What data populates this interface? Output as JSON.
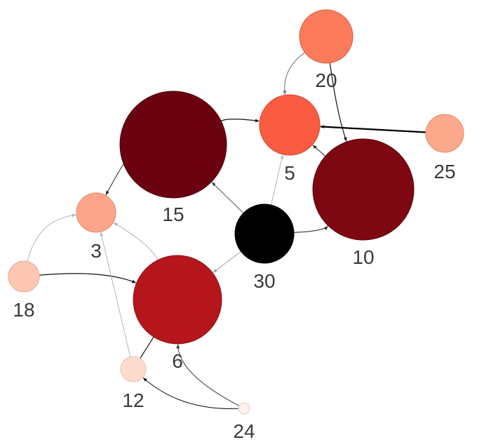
{
  "graph": {
    "nodes": [
      {
        "id": "20",
        "label": "20",
        "fill": "#fb7b5b",
        "stroke": "#d9583d"
      },
      {
        "id": "5",
        "label": "5",
        "fill": "#fa5c42",
        "stroke": "#d8402a"
      },
      {
        "id": "25",
        "label": "25",
        "fill": "#fca98b",
        "stroke": "#e88a6c"
      },
      {
        "id": "15",
        "label": "15",
        "fill": "#6b0210",
        "stroke": "#4e0009"
      },
      {
        "id": "10",
        "label": "10",
        "fill": "#7d0812",
        "stroke": "#5c020a"
      },
      {
        "id": "3",
        "label": "3",
        "fill": "#fca58a",
        "stroke": "#e4866a"
      },
      {
        "id": "30",
        "label": "30",
        "fill": "#000000",
        "stroke": "#000000"
      },
      {
        "id": "18",
        "label": "18",
        "fill": "#fdc7b2",
        "stroke": "#eaa891"
      },
      {
        "id": "6",
        "label": "6",
        "fill": "#b5161b",
        "stroke": "#8f0d12"
      },
      {
        "id": "12",
        "label": "12",
        "fill": "#fddccd",
        "stroke": "#ecbda9"
      },
      {
        "id": "24",
        "label": "24",
        "fill": "#fff2ec",
        "stroke": "#e8c9bb"
      }
    ],
    "edges": [
      {
        "from": "20",
        "to": "5",
        "color": "#6f6f6f"
      },
      {
        "from": "20",
        "to": "10",
        "color": "#111111"
      },
      {
        "from": "25",
        "to": "5",
        "color": "#000000"
      },
      {
        "from": "15",
        "to": "5",
        "color": "#111111"
      },
      {
        "from": "10",
        "to": "5",
        "color": "#222222"
      },
      {
        "from": "15",
        "to": "3",
        "color": "#222222"
      },
      {
        "from": "30",
        "to": "15",
        "color": "#444444"
      },
      {
        "from": "30",
        "to": "10",
        "color": "#222222"
      },
      {
        "from": "30",
        "to": "5",
        "color": "#b5b5b5"
      },
      {
        "from": "30",
        "to": "6",
        "color": "#a0a0a0"
      },
      {
        "from": "18",
        "to": "3",
        "color": "#b5b5b5"
      },
      {
        "from": "18",
        "to": "6",
        "color": "#111111"
      },
      {
        "from": "6",
        "to": "3",
        "color": "#b0b0b0"
      },
      {
        "from": "12",
        "to": "3",
        "color": "#b5b5b5"
      },
      {
        "from": "12",
        "to": "6",
        "color": "#111111"
      },
      {
        "from": "24",
        "to": "6",
        "color": "#333333"
      },
      {
        "from": "24",
        "to": "12",
        "color": "#111111"
      }
    ]
  }
}
